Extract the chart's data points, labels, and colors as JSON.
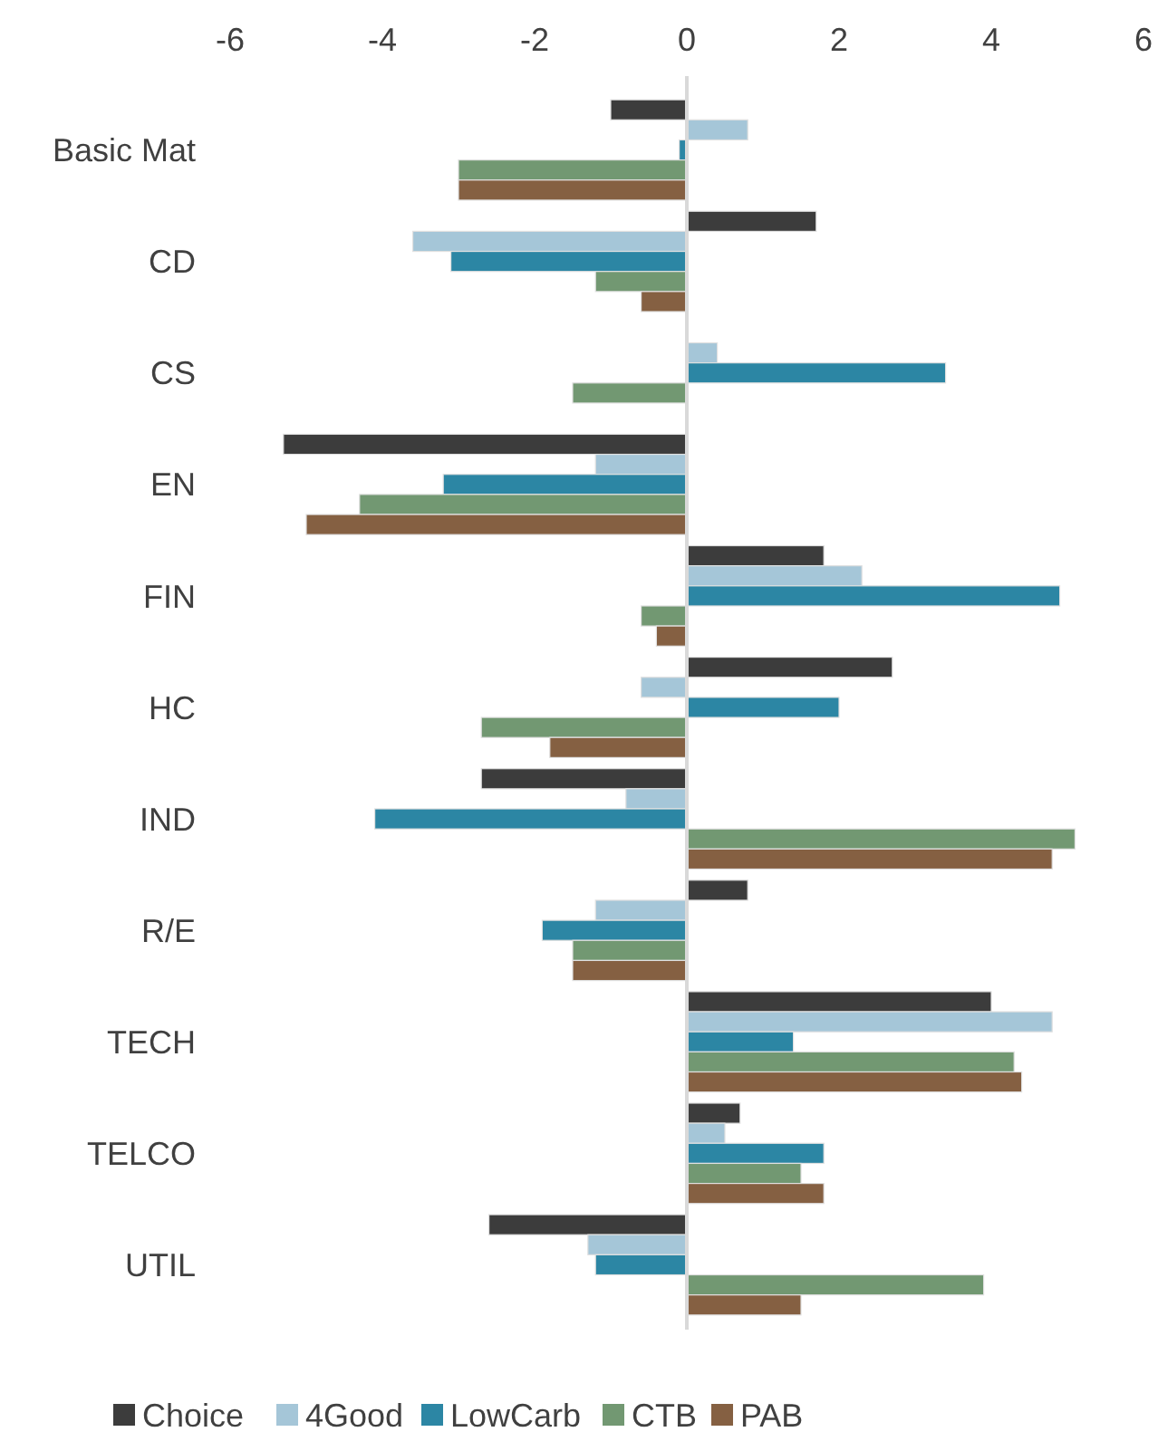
{
  "chart_data": {
    "type": "bar",
    "orientation": "horizontal",
    "categories": [
      "Basic Mat",
      "CD",
      "CS",
      "EN",
      "FIN",
      "HC",
      "IND",
      "R/E",
      "TECH",
      "TELCO",
      "UTIL"
    ],
    "series": [
      {
        "name": "Choice",
        "color": "#3c3c3c",
        "values": [
          -1.0,
          1.7,
          0.0,
          -5.3,
          1.8,
          2.7,
          -2.7,
          0.8,
          4.0,
          0.7,
          -2.6
        ]
      },
      {
        "name": "4Good",
        "color": "#a5c6d8",
        "values": [
          0.8,
          -3.6,
          0.4,
          -1.2,
          2.3,
          -0.6,
          -0.8,
          -1.2,
          4.8,
          0.5,
          -1.3
        ]
      },
      {
        "name": "LowCarb",
        "color": "#2c86a4",
        "values": [
          -0.1,
          -3.1,
          3.4,
          -3.2,
          4.9,
          2.0,
          -4.1,
          -1.9,
          1.4,
          1.8,
          -1.2
        ]
      },
      {
        "name": "CTB",
        "color": "#729872",
        "values": [
          -3.0,
          -1.2,
          -1.5,
          -4.3,
          -0.6,
          -2.7,
          5.1,
          -1.5,
          4.3,
          1.5,
          3.9
        ]
      },
      {
        "name": "PAB",
        "color": "#856042",
        "values": [
          -3.0,
          -0.6,
          0.0,
          -5.0,
          -0.4,
          -1.8,
          4.8,
          -1.5,
          4.4,
          1.8,
          1.5
        ]
      }
    ],
    "xlim": [
      -6,
      6
    ],
    "xticks": [
      -6,
      -4,
      -2,
      0,
      2,
      4,
      6
    ],
    "legend": "bottom"
  }
}
